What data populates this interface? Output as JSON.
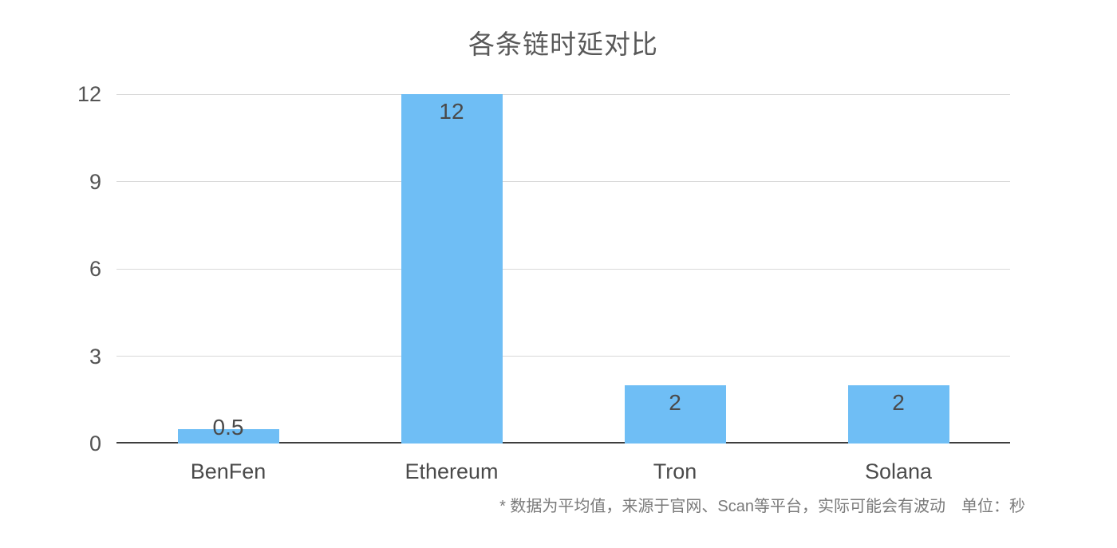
{
  "chart_data": {
    "type": "bar",
    "title": "各条链时延对比",
    "categories": [
      "BenFen",
      "Ethereum",
      "Tron",
      "Solana"
    ],
    "values": [
      0.5,
      12,
      2,
      2
    ],
    "value_labels": [
      "0.5",
      "12",
      "2",
      "2"
    ],
    "yticks": [
      0,
      3,
      6,
      9,
      12
    ],
    "ylim": [
      0,
      12
    ],
    "xlabel": "",
    "ylabel": "",
    "unit": "秒",
    "grid": "horizontal",
    "legend": "none",
    "footnote": "* 数据为平均值，来源于官网、Scan等平台，实际可能会有波动　单位：秒"
  },
  "colors": {
    "bar": "#6FBEF5",
    "gridline": "#D9D9D9",
    "axis": "#3D3D3D",
    "title_text": "#595959",
    "tick_text": "#545454",
    "value_text": "#4A4A4A",
    "category_text": "#4A4A4A",
    "footnote_text": "#7A7A7A",
    "background": "#FFFFFF"
  }
}
